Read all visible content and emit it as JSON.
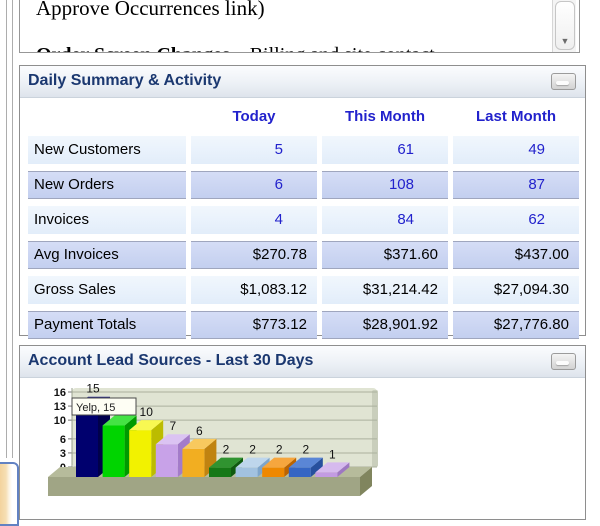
{
  "document_preview": {
    "line1": "Approve Occurrences link)",
    "line2_bold": "Order Screen Changes",
    "line2_regular": " – Billing and site contact",
    "scroll_down_glyph": "▼"
  },
  "summary_panel": {
    "title": "Daily Summary & Activity",
    "columns": [
      "Today",
      "This Month",
      "Last Month"
    ],
    "rows": [
      {
        "label": "New Customers",
        "type": "count",
        "values": [
          "5",
          "61",
          "49"
        ]
      },
      {
        "label": "New Orders",
        "type": "count",
        "values": [
          "6",
          "108",
          "87"
        ]
      },
      {
        "label": "Invoices",
        "type": "count",
        "values": [
          "4",
          "84",
          "62"
        ]
      },
      {
        "label": "Avg Invoices",
        "type": "money",
        "values": [
          "$270.78",
          "$371.60",
          "$437.00"
        ]
      },
      {
        "label": "Gross Sales",
        "type": "money",
        "values": [
          "$1,083.12",
          "$31,214.42",
          "$27,094.30"
        ]
      },
      {
        "label": "Payment Totals",
        "type": "money",
        "values": [
          "$773.12",
          "$28,901.92",
          "$27,776.80"
        ]
      }
    ]
  },
  "leads_panel": {
    "title": "Account Lead Sources - Last 30 Days"
  },
  "chart_data": {
    "type": "bar",
    "style": "3d",
    "title": "Account Lead Sources - Last 30 Days",
    "categories": [
      "Yelp",
      "",
      "",
      "",
      "",
      "",
      "",
      "",
      "",
      ""
    ],
    "values": [
      15,
      11,
      10,
      7,
      6,
      2,
      2,
      2,
      2,
      1
    ],
    "yticks": [
      16,
      13,
      10,
      6,
      3,
      0
    ],
    "ylim": [
      0,
      16
    ],
    "grid": true,
    "legend": false,
    "tooltip": {
      "text": "Yelp, 15",
      "bar_index": 0
    },
    "bar_colors": [
      {
        "front": "#00006E",
        "side": "#00004A",
        "top": "#28288E"
      },
      {
        "front": "#00D400",
        "side": "#009A00",
        "top": "#44E344"
      },
      {
        "front": "#F2F200",
        "side": "#BCBC00",
        "top": "#F8F852"
      },
      {
        "front": "#C8A2E8",
        "side": "#A37BC9",
        "top": "#DBC3F2"
      },
      {
        "front": "#F2AE21",
        "side": "#C08310",
        "top": "#F8C95E"
      },
      {
        "front": "#167816",
        "side": "#0F5A0F",
        "top": "#309330"
      },
      {
        "front": "#A2C2E0",
        "side": "#7EA5CB",
        "top": "#BED6EC"
      },
      {
        "front": "#EE8800",
        "side": "#BC6400",
        "top": "#F6A63E"
      },
      {
        "front": "#3566C4",
        "side": "#27509E",
        "top": "#5A86D6"
      },
      {
        "front": "#C39BE2",
        "side": "#9E77C2",
        "top": "#D6BAEE"
      }
    ],
    "plot_bg": "#E0E4D3",
    "plot_edge": "#C9CEBC",
    "gridline_color": "#ABB19E",
    "platform_colors": {
      "top": "#B6BB9B",
      "front": "#A0A585",
      "side": "#80855E"
    },
    "tooltip_style": {
      "bg": "#FEFEF4",
      "border": "#4A4A4A"
    }
  },
  "colors": {
    "panel_border": "#8E8E8E",
    "header_title": "#1B3870",
    "table_blue": "#2222CC",
    "row_light": "#E8F2FC",
    "row_lavender": "#C9D3F1"
  }
}
